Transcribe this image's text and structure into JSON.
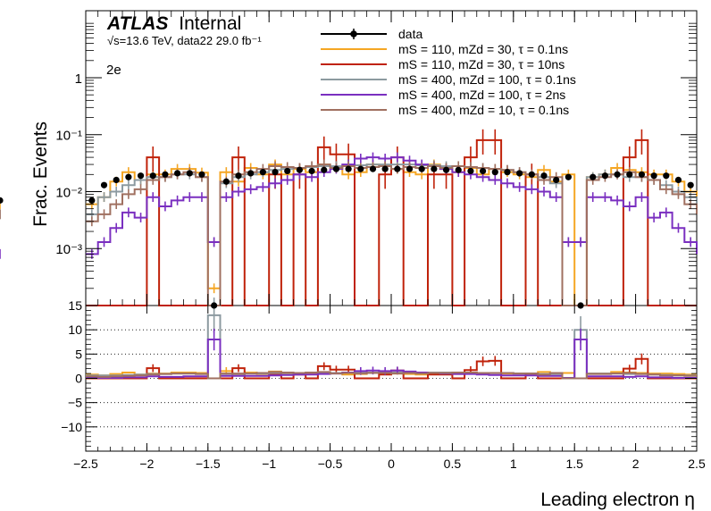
{
  "atlas": {
    "brand": "ATLAS",
    "status": "Internal"
  },
  "energy_label": "√s=13.6 TeV, data22 29.0 fb⁻¹",
  "channel_label": "2e",
  "chart_data": [
    {
      "type": "line",
      "panel": "main",
      "xlabel": "Leading electron η",
      "ylabel": "Frac. Events",
      "yscale": "log",
      "xlim": [
        -2.5,
        2.5
      ],
      "ylim": [
        0.0001,
        15
      ],
      "x_ticks": [
        "−2.5",
        "−2",
        "−1.5",
        "−1",
        "−0.5",
        "0",
        "0.5",
        "1",
        "1.5",
        "2",
        "2.5"
      ],
      "y_ticks": [
        "10⁻³",
        "10⁻²",
        "10⁻¹",
        "1"
      ],
      "bin_edges": [
        -2.5,
        -2.4,
        -2.3,
        -2.2,
        -2.1,
        -2.0,
        -1.9,
        -1.8,
        -1.7,
        -1.6,
        -1.5,
        -1.4,
        -1.3,
        -1.2,
        -1.1,
        -1.0,
        -0.9,
        -0.8,
        -0.7,
        -0.6,
        -0.5,
        -0.4,
        -0.3,
        -0.2,
        -0.1,
        0.0,
        0.1,
        0.2,
        0.3,
        0.4,
        0.5,
        0.6,
        0.7,
        0.8,
        0.9,
        1.0,
        1.1,
        1.2,
        1.3,
        1.4,
        1.5,
        1.6,
        1.7,
        1.8,
        1.9,
        2.0,
        2.1,
        2.2,
        2.3,
        2.4,
        2.5
      ],
      "legend_position": "top",
      "series": [
        {
          "name": "data",
          "style": "points",
          "color": "#000000",
          "values": [
            0.007,
            0.013,
            0.016,
            0.018,
            0.019,
            0.019,
            0.02,
            0.021,
            0.021,
            0.02,
            0.0001,
            0.015,
            0.019,
            0.021,
            0.022,
            0.022,
            0.023,
            0.024,
            0.023,
            0.024,
            0.025,
            0.025,
            0.025,
            0.025,
            0.025,
            0.025,
            0.025,
            0.025,
            0.025,
            0.024,
            0.024,
            0.023,
            0.023,
            0.022,
            0.022,
            0.021,
            0.02,
            0.019,
            0.016,
            0.018,
            0.0001,
            0.018,
            0.019,
            0.02,
            0.02,
            0.02,
            0.019,
            0.019,
            0.016,
            0.013,
            0.007
          ]
        },
        {
          "name": "mS = 110, mZd = 30, τ = 0.1ns",
          "style": "step",
          "color": "#f5a623",
          "values": [
            0.006,
            0.008,
            0.015,
            0.022,
            0.016,
            0.02,
            0.02,
            0.025,
            0.025,
            0.0216,
            0.0002,
            0.022,
            0.015,
            0.026,
            0.02,
            0.03,
            0.02,
            0.025,
            0.022,
            0.03,
            0.028,
            0.02,
            0.022,
            0.03,
            0.028,
            0.025,
            0.022,
            0.02,
            0.03,
            0.025,
            0.022,
            0.026,
            0.02,
            0.025,
            0.022,
            0.02,
            0.018,
            0.024,
            0.015,
            0.02,
            0.0001,
            0.018,
            0.02,
            0.026,
            0.024,
            0.022,
            0.02,
            0.02,
            0.015,
            0.01,
            0.006
          ]
        },
        {
          "name": "mS = 110, mZd = 30, τ = 10ns",
          "style": "step",
          "color": "#c0220a",
          "values": [
            0.0001,
            0.0001,
            0.0001,
            0.0001,
            0.0001,
            0.04,
            0.0001,
            0.0001,
            0.0001,
            0.0001,
            0.0001,
            0.0001,
            0.04,
            0.0001,
            0.0001,
            0.02,
            0.0001,
            0.02,
            0.0001,
            0.06,
            0.045,
            0.045,
            0.0001,
            0.0001,
            0.02,
            0.04,
            0.0001,
            0.0001,
            0.02,
            0.02,
            0.0001,
            0.04,
            0.08,
            0.08,
            0.0001,
            0.0001,
            0.02,
            0.0001,
            0.0001,
            0.0001,
            0.0001,
            0.0001,
            0.0001,
            0.0001,
            0.04,
            0.08,
            0.0001,
            0.0001,
            0.0001,
            0.0001,
            0.0001
          ]
        },
        {
          "name": "mS = 400, mZd = 100, τ = 0.1ns",
          "style": "step",
          "color": "#8c9aa0",
          "values": [
            0.004,
            0.008,
            0.01,
            0.013,
            0.016,
            0.018,
            0.018,
            0.02,
            0.02,
            0.018,
            0.0013,
            0.014,
            0.018,
            0.02,
            0.022,
            0.024,
            0.025,
            0.026,
            0.027,
            0.028,
            0.028,
            0.029,
            0.029,
            0.03,
            0.03,
            0.03,
            0.03,
            0.029,
            0.029,
            0.028,
            0.028,
            0.027,
            0.026,
            0.025,
            0.024,
            0.022,
            0.02,
            0.018,
            0.014,
            0.0013,
            0.0013,
            0.018,
            0.02,
            0.02,
            0.018,
            0.018,
            0.016,
            0.013,
            0.01,
            0.008,
            0.004
          ]
        },
        {
          "name": "mS = 400, mZd = 100, τ = 2ns",
          "style": "step",
          "color": "#7a2fc0",
          "values": [
            0.0008,
            0.0013,
            0.0023,
            0.0043,
            0.0035,
            0.008,
            0.0055,
            0.007,
            0.008,
            0.008,
            0.0013,
            0.008,
            0.01,
            0.011,
            0.012,
            0.014,
            0.016,
            0.02,
            0.018,
            0.022,
            0.025,
            0.03,
            0.038,
            0.04,
            0.038,
            0.04,
            0.035,
            0.03,
            0.028,
            0.025,
            0.022,
            0.02,
            0.018,
            0.016,
            0.014,
            0.012,
            0.011,
            0.01,
            0.008,
            0.0013,
            0.0013,
            0.008,
            0.008,
            0.007,
            0.0055,
            0.008,
            0.0035,
            0.0043,
            0.0023,
            0.0013,
            0.0008
          ]
        },
        {
          "name": "mS = 400, mZd = 10, τ = 0.1ns",
          "style": "step",
          "color": "#a07060",
          "values": [
            0.003,
            0.004,
            0.006,
            0.009,
            0.011,
            0.016,
            0.018,
            0.02,
            0.022,
            0.018,
            0.0001,
            0.015,
            0.02,
            0.022,
            0.025,
            0.028,
            0.027,
            0.026,
            0.028,
            0.03,
            0.026,
            0.028,
            0.026,
            0.027,
            0.028,
            0.025,
            0.027,
            0.026,
            0.028,
            0.026,
            0.028,
            0.027,
            0.026,
            0.025,
            0.024,
            0.022,
            0.02,
            0.016,
            0.018,
            0.0001,
            0.0001,
            0.016,
            0.018,
            0.02,
            0.022,
            0.018,
            0.016,
            0.011,
            0.009,
            0.006,
            0.004
          ]
        }
      ]
    },
    {
      "type": "line",
      "panel": "ratio",
      "xlim": [
        -2.5,
        2.5
      ],
      "ylim": [
        -15,
        15
      ],
      "y_ticks": [
        "−10",
        "−5",
        "0",
        "5",
        "10",
        "15"
      ],
      "grid": "horizontal dotted",
      "series": [
        {
          "name": "mS = 110, mZd = 30, τ = 0.1ns",
          "color": "#f5a623",
          "values": [
            0.8,
            0.6,
            0.9,
            1.2,
            0.8,
            1.0,
            1.0,
            1.2,
            1.2,
            1.1,
            0.0,
            1.5,
            0.8,
            1.2,
            0.9,
            1.4,
            0.9,
            1.0,
            1.0,
            1.2,
            1.1,
            0.8,
            0.9,
            1.2,
            1.1,
            1.0,
            0.9,
            0.8,
            1.2,
            1.0,
            0.9,
            1.1,
            0.9,
            1.1,
            1.0,
            1.0,
            0.9,
            1.3,
            0.9,
            1.1,
            0.0,
            1.0,
            1.0,
            1.3,
            1.2,
            1.1,
            1.0,
            1.0,
            0.9,
            0.8,
            0.8
          ]
        },
        {
          "name": "mS = 110, mZd = 30, τ = 10ns",
          "color": "#c0220a",
          "values": [
            0,
            0,
            0,
            0,
            0,
            2.1,
            0,
            0,
            0,
            0,
            0,
            0,
            2.1,
            0,
            0,
            0.9,
            0,
            0.8,
            0,
            2.5,
            1.8,
            1.8,
            0,
            0,
            0.8,
            1.6,
            0,
            0,
            0.8,
            0.8,
            0,
            1.7,
            3.5,
            3.6,
            0,
            0,
            1.0,
            0,
            0,
            0,
            0,
            0,
            0,
            0,
            2.0,
            4.0,
            0,
            0,
            0,
            0,
            0
          ]
        },
        {
          "name": "mS = 400, mZd = 100, τ = 0.1ns",
          "color": "#8c9aa0",
          "values": [
            0.6,
            0.6,
            0.6,
            0.7,
            0.8,
            0.9,
            0.9,
            1.0,
            1.0,
            0.9,
            13.0,
            0.9,
            0.9,
            1.0,
            1.0,
            1.1,
            1.1,
            1.1,
            1.2,
            1.2,
            1.1,
            1.2,
            1.2,
            1.2,
            1.2,
            1.2,
            1.2,
            1.2,
            1.2,
            1.2,
            1.2,
            1.2,
            1.1,
            1.1,
            1.1,
            1.0,
            1.0,
            0.9,
            0.9,
            0.1,
            10.0,
            1.0,
            1.0,
            1.0,
            0.9,
            0.9,
            0.8,
            0.7,
            0.6,
            0.6,
            0.6
          ]
        },
        {
          "name": "mS = 400, mZd = 100, τ = 2ns",
          "color": "#7a2fc0",
          "values": [
            0.1,
            0.1,
            0.1,
            0.2,
            0.2,
            0.4,
            0.3,
            0.3,
            0.4,
            0.4,
            8.0,
            0.5,
            0.5,
            0.5,
            0.5,
            0.6,
            0.7,
            0.8,
            0.8,
            0.9,
            1.0,
            1.2,
            1.5,
            1.6,
            1.5,
            1.6,
            1.4,
            1.2,
            1.1,
            1.0,
            0.9,
            0.9,
            0.8,
            0.7,
            0.6,
            0.6,
            0.6,
            0.5,
            0.5,
            0.1,
            8.0,
            0.4,
            0.4,
            0.4,
            0.3,
            0.4,
            0.2,
            0.2,
            0.1,
            0.1,
            0.1
          ]
        },
        {
          "name": "mS = 400, mZd = 10, τ = 0.1ns",
          "color": "#a07060",
          "values": [
            0.4,
            0.3,
            0.4,
            0.5,
            0.6,
            0.8,
            0.9,
            1.0,
            1.0,
            0.9,
            0.0,
            1.0,
            1.0,
            1.0,
            1.1,
            1.3,
            1.2,
            1.1,
            1.2,
            1.3,
            1.0,
            1.1,
            1.0,
            1.1,
            1.1,
            1.0,
            1.1,
            1.0,
            1.1,
            1.1,
            1.2,
            1.2,
            1.1,
            1.1,
            1.1,
            1.0,
            1.0,
            0.8,
            1.1,
            0.0,
            0.0,
            0.9,
            0.9,
            1.0,
            1.1,
            0.9,
            0.8,
            0.6,
            0.6,
            0.5,
            0.6
          ]
        }
      ]
    }
  ]
}
